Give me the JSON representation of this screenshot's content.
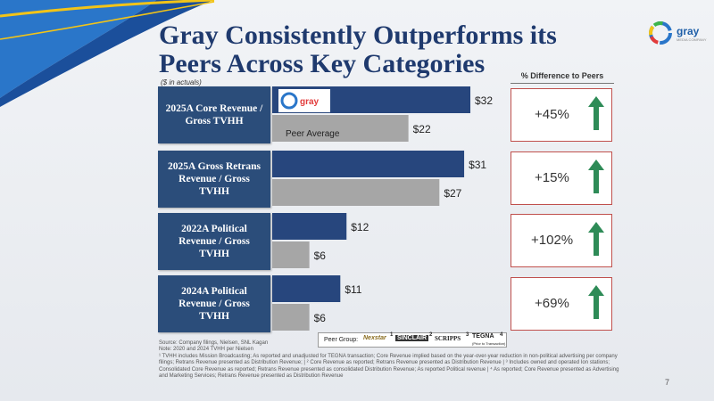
{
  "title": "Gray Consistently Outperforms its Peers Across Key Categories",
  "units_note": "($ in actuals)",
  "brand": {
    "name": "gray",
    "tagline": "MEDIA COMPANY",
    "primary": "#1f3a6e",
    "bar_gray_color": "#27467d",
    "peer_bar_color": "#a6a6a6",
    "accent_red": "#c0504d",
    "arrow_green": "#2e8b57"
  },
  "pct_header": "% Difference to Peers",
  "categories": [
    {
      "label": "2025A Core Revenue / Gross TVHH"
    },
    {
      "label": "2025A Gross Retrans Revenue / Gross TVHH"
    },
    {
      "label": "2022A Political Revenue / Gross TVHH"
    },
    {
      "label": "2024A Political Revenue / Gross TVHH"
    }
  ],
  "percent_diffs": [
    "+45%",
    "+15%",
    "+102%",
    "+69%"
  ],
  "chart_data": {
    "type": "bar",
    "orientation": "horizontal",
    "categories": [
      "2025A Core Revenue / Gross TVHH",
      "2025A Gross Retrans Revenue / Gross TVHH",
      "2022A Political Revenue / Gross TVHH",
      "2024A Political Revenue / Gross TVHH"
    ],
    "series": [
      {
        "name": "gray",
        "values": [
          32,
          31,
          12,
          11
        ],
        "labels": [
          "$32",
          "$31",
          "$12",
          "$11"
        ]
      },
      {
        "name": "Peer Average",
        "values": [
          22,
          27,
          6,
          6
        ],
        "labels": [
          "$22",
          "$27",
          "$6",
          "$6"
        ]
      }
    ],
    "xlim": [
      0,
      35
    ]
  },
  "peer_group": {
    "label": "Peer Group:",
    "peers": [
      "Nexstar",
      "SINCLAIR",
      "SCRIPPS",
      "TEGNA"
    ],
    "sup": [
      "1",
      "2",
      "3",
      "4"
    ],
    "tegna_note": "(Prior to Transaction)"
  },
  "footnotes": [
    "Source: Company filings, Nielsen, SNL Kagan",
    "Note: 2020 and 2024 TVHH per Nielsen",
    "¹ TVHH includes Mission Broadcasting; As reported and unadjusted for TEGNA transaction; Core Revenue implied based on the year-over-year reduction in non-political advertising per company filings; Retrans Revenue presented as Distribution Revenue; | ² Core Revenue as reported; Retrans Revenue presented as Distribution Revenue | ³ Includes owned and operated Ion stations; Consolidated Core Revenue as reported; Retrans Revenue presented as consolidated Distribution Revenue; As reported Political revenue | ⁴ As reported; Core Revenue presented as Advertising and Marketing Services; Retrans Revenue presented as Distribution Revenue"
  ],
  "page_number": "7"
}
